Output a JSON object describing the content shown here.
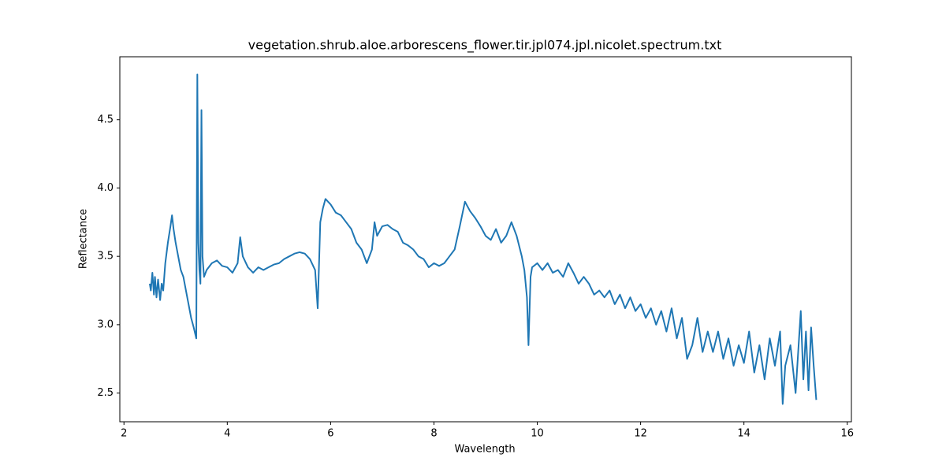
{
  "chart_data": {
    "type": "line",
    "title": "vegetation.shrub.aloe.arborescens_flower.tir.jpl074.jpl.nicolet.spectrum.txt",
    "x_label": "Wavelength",
    "y_label": "Reflectance",
    "x": [
      2.5,
      2.52,
      2.55,
      2.58,
      2.6,
      2.63,
      2.66,
      2.7,
      2.73,
      2.76,
      2.8,
      2.85,
      2.9,
      2.93,
      2.96,
      3.0,
      3.05,
      3.1,
      3.15,
      3.2,
      3.25,
      3.3,
      3.35,
      3.4,
      3.42,
      3.44,
      3.46,
      3.48,
      3.5,
      3.52,
      3.55,
      3.6,
      3.7,
      3.8,
      3.9,
      4.0,
      4.1,
      4.2,
      4.25,
      4.3,
      4.4,
      4.5,
      4.6,
      4.7,
      4.8,
      4.9,
      5.0,
      5.1,
      5.2,
      5.3,
      5.4,
      5.5,
      5.6,
      5.7,
      5.75,
      5.8,
      5.85,
      5.9,
      6.0,
      6.1,
      6.2,
      6.3,
      6.4,
      6.5,
      6.6,
      6.7,
      6.8,
      6.85,
      6.9,
      7.0,
      7.1,
      7.2,
      7.3,
      7.4,
      7.5,
      7.6,
      7.7,
      7.8,
      7.9,
      8.0,
      8.1,
      8.2,
      8.3,
      8.4,
      8.5,
      8.6,
      8.7,
      8.8,
      8.9,
      9.0,
      9.1,
      9.2,
      9.3,
      9.4,
      9.5,
      9.6,
      9.7,
      9.75,
      9.8,
      9.83,
      9.87,
      9.9,
      10.0,
      10.1,
      10.2,
      10.3,
      10.4,
      10.5,
      10.6,
      10.7,
      10.8,
      10.9,
      11.0,
      11.1,
      11.2,
      11.3,
      11.4,
      11.5,
      11.6,
      11.7,
      11.8,
      11.9,
      12.0,
      12.1,
      12.2,
      12.3,
      12.4,
      12.5,
      12.6,
      12.7,
      12.8,
      12.9,
      13.0,
      13.1,
      13.2,
      13.3,
      13.4,
      13.5,
      13.6,
      13.7,
      13.8,
      13.9,
      14.0,
      14.1,
      14.2,
      14.3,
      14.4,
      14.5,
      14.6,
      14.7,
      14.75,
      14.8,
      14.9,
      15.0,
      15.1,
      15.15,
      15.2,
      15.25,
      15.3,
      15.35,
      15.4
    ],
    "values": [
      3.3,
      3.25,
      3.38,
      3.22,
      3.35,
      3.2,
      3.33,
      3.18,
      3.3,
      3.25,
      3.45,
      3.6,
      3.72,
      3.8,
      3.7,
      3.6,
      3.5,
      3.4,
      3.35,
      3.25,
      3.15,
      3.05,
      2.98,
      2.9,
      4.83,
      3.6,
      3.4,
      3.3,
      4.57,
      3.5,
      3.35,
      3.4,
      3.45,
      3.47,
      3.43,
      3.42,
      3.38,
      3.45,
      3.64,
      3.5,
      3.42,
      3.38,
      3.42,
      3.4,
      3.42,
      3.44,
      3.45,
      3.48,
      3.5,
      3.52,
      3.53,
      3.52,
      3.48,
      3.4,
      3.12,
      3.75,
      3.85,
      3.92,
      3.88,
      3.82,
      3.8,
      3.75,
      3.7,
      3.6,
      3.55,
      3.45,
      3.55,
      3.75,
      3.65,
      3.72,
      3.73,
      3.7,
      3.68,
      3.6,
      3.58,
      3.55,
      3.5,
      3.48,
      3.42,
      3.45,
      3.43,
      3.45,
      3.5,
      3.55,
      3.72,
      3.9,
      3.83,
      3.78,
      3.72,
      3.65,
      3.62,
      3.7,
      3.6,
      3.65,
      3.75,
      3.65,
      3.5,
      3.4,
      3.2,
      2.85,
      3.35,
      3.42,
      3.45,
      3.4,
      3.45,
      3.38,
      3.4,
      3.35,
      3.45,
      3.38,
      3.3,
      3.35,
      3.3,
      3.22,
      3.25,
      3.2,
      3.25,
      3.15,
      3.22,
      3.12,
      3.2,
      3.1,
      3.15,
      3.05,
      3.12,
      3.0,
      3.1,
      2.95,
      3.12,
      2.9,
      3.05,
      2.75,
      2.85,
      3.05,
      2.8,
      2.95,
      2.8,
      2.95,
      2.75,
      2.9,
      2.7,
      2.85,
      2.72,
      2.95,
      2.65,
      2.85,
      2.6,
      2.9,
      2.7,
      2.95,
      2.42,
      2.7,
      2.85,
      2.5,
      3.1,
      2.6,
      2.95,
      2.52,
      2.98,
      2.7,
      2.45
    ],
    "color": "#1f77b4",
    "xlim": [
      1.92,
      16.08
    ],
    "ylim": [
      2.29,
      4.96
    ],
    "xticks": [
      2,
      4,
      6,
      8,
      10,
      12,
      14,
      16
    ],
    "yticks": [
      2.5,
      {
        "value": 3,
        "label": "3.0"
      },
      3.5,
      {
        "value": 4,
        "label": "4.0"
      },
      4.5
    ],
    "grid": false
  }
}
